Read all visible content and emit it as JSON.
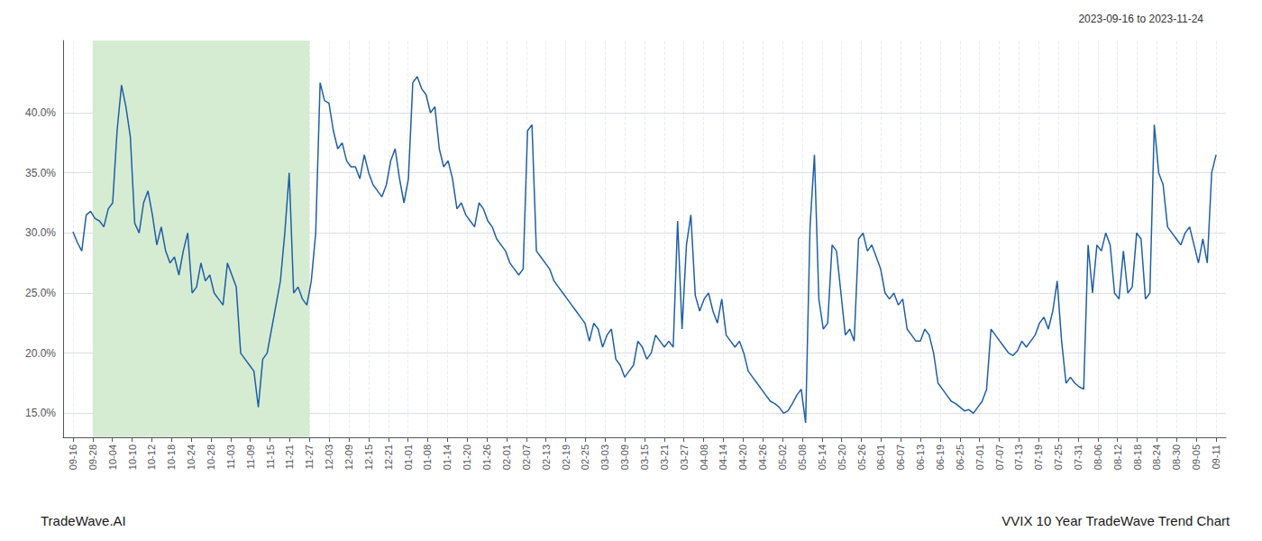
{
  "chart_data": {
    "type": "line",
    "title": "VVIX 10 Year TradeWave Trend Chart",
    "subtitle": "2023-09-16 to 2023-11-24",
    "annotations": [
      "TradeWave.AI"
    ],
    "color": "#1f5fa6",
    "grid": true,
    "highlight": {
      "x": [
        1,
        12
      ],
      "color": "#d6ecd2"
    },
    "xlim": [
      -0.5,
      58.5
    ],
    "xticks": [
      {
        "value": 0,
        "label": "09-16"
      },
      {
        "value": 1,
        "label": "09-28"
      },
      {
        "value": 2,
        "label": "10-04"
      },
      {
        "value": 3,
        "label": "10-10"
      },
      {
        "value": 4,
        "label": "10-12"
      },
      {
        "value": 5,
        "label": "10-18"
      },
      {
        "value": 6,
        "label": "10-24"
      },
      {
        "value": 7,
        "label": "10-28"
      },
      {
        "value": 8,
        "label": "11-03"
      },
      {
        "value": 9,
        "label": "11-09"
      },
      {
        "value": 10,
        "label": "11-15"
      },
      {
        "value": 11,
        "label": "11-21"
      },
      {
        "value": 12,
        "label": "11-27"
      },
      {
        "value": 13,
        "label": "12-03"
      },
      {
        "value": 14,
        "label": "12-09"
      },
      {
        "value": 15,
        "label": "12-15"
      },
      {
        "value": 16,
        "label": "12-21"
      },
      {
        "value": 17,
        "label": "01-01"
      },
      {
        "value": 18,
        "label": "01-08"
      },
      {
        "value": 19,
        "label": "01-14"
      },
      {
        "value": 20,
        "label": "01-20"
      },
      {
        "value": 21,
        "label": "01-26"
      },
      {
        "value": 22,
        "label": "02-01"
      },
      {
        "value": 23,
        "label": "02-07"
      },
      {
        "value": 24,
        "label": "02-13"
      },
      {
        "value": 25,
        "label": "02-19"
      },
      {
        "value": 26,
        "label": "02-25"
      },
      {
        "value": 27,
        "label": "03-03"
      },
      {
        "value": 28,
        "label": "03-09"
      },
      {
        "value": 29,
        "label": "03-15"
      },
      {
        "value": 30,
        "label": "03-21"
      },
      {
        "value": 31,
        "label": "03-27"
      },
      {
        "value": 32,
        "label": "04-08"
      },
      {
        "value": 33,
        "label": "04-14"
      },
      {
        "value": 34,
        "label": "04-20"
      },
      {
        "value": 35,
        "label": "04-26"
      },
      {
        "value": 36,
        "label": "05-02"
      },
      {
        "value": 37,
        "label": "05-08"
      },
      {
        "value": 38,
        "label": "05-14"
      },
      {
        "value": 39,
        "label": "05-20"
      },
      {
        "value": 40,
        "label": "05-26"
      },
      {
        "value": 41,
        "label": "06-01"
      },
      {
        "value": 42,
        "label": "06-07"
      },
      {
        "value": 43,
        "label": "06-13"
      },
      {
        "value": 44,
        "label": "06-19"
      },
      {
        "value": 45,
        "label": "06-25"
      },
      {
        "value": 46,
        "label": "07-01"
      },
      {
        "value": 47,
        "label": "07-07"
      },
      {
        "value": 48,
        "label": "07-13"
      },
      {
        "value": 49,
        "label": "07-19"
      },
      {
        "value": 50,
        "label": "07-25"
      },
      {
        "value": 51,
        "label": "07-31"
      },
      {
        "value": 52,
        "label": "08-06"
      },
      {
        "value": 53,
        "label": "08-12"
      },
      {
        "value": 54,
        "label": "08-18"
      },
      {
        "value": 55,
        "label": "08-24"
      },
      {
        "value": 56,
        "label": "08-30"
      },
      {
        "value": 57,
        "label": "09-05"
      },
      {
        "value": 58,
        "label": "09-11"
      }
    ],
    "ylim": [
      13.0,
      46.0
    ],
    "yticks": [
      {
        "value": 15.0,
        "label": "15.0%"
      },
      {
        "value": 20.0,
        "label": "20.0%"
      },
      {
        "value": 25.0,
        "label": "25.0%"
      },
      {
        "value": 30.0,
        "label": "30.0%"
      },
      {
        "value": 35.0,
        "label": "35.0%"
      },
      {
        "value": 40.0,
        "label": "40.0%"
      }
    ],
    "x": [
      0,
      0.2239,
      0.4479,
      0.6718,
      0.8958,
      1.1197,
      1.3436,
      1.5676,
      1.7915,
      2.0154,
      2.2394,
      2.4633,
      2.6873,
      2.9112,
      3.1351,
      3.3591,
      3.583,
      3.8069,
      4.0309,
      4.2548,
      4.4788,
      4.7027,
      4.9266,
      5.1506,
      5.3745,
      5.5985,
      5.8224,
      6.0463,
      6.2703,
      6.4942,
      6.7181,
      6.9421,
      7.166,
      7.39,
      7.6139,
      7.8378,
      8.0618,
      8.2857,
      8.5097,
      8.7336,
      8.9575,
      9.1815,
      9.4054,
      9.6293,
      9.8533,
      10.0772,
      10.3012,
      10.5251,
      10.749,
      10.973,
      11.1969,
      11.4208,
      11.6448,
      11.8687,
      12.0927,
      12.3166,
      12.5405,
      12.7645,
      12.9884,
      13.2124,
      13.4363,
      13.6602,
      13.8842,
      14.1081,
      14.332,
      14.556,
      14.7799,
      15.0039,
      15.2278,
      15.4517,
      15.6757,
      15.8996,
      16.1236,
      16.3475,
      16.5714,
      16.7954,
      17.0193,
      17.2432,
      17.4672,
      17.6911,
      17.9151,
      18.139,
      18.3629,
      18.5869,
      18.8108,
      19.0347,
      19.2587,
      19.4826,
      19.7066,
      19.9305,
      20.1544,
      20.3784,
      20.6023,
      20.8263,
      21.0502,
      21.2741,
      21.4981,
      21.722,
      21.9459,
      22.1699,
      22.3938,
      22.6178,
      22.8417,
      23.0656,
      23.2896,
      23.5135,
      23.7375,
      23.9614,
      24.1853,
      24.4093,
      24.6332,
      24.8571,
      25.0811,
      25.305,
      25.529,
      25.7529,
      25.9768,
      26.2008,
      26.4247,
      26.6486,
      26.8726,
      27.0965,
      27.3205,
      27.5444,
      27.7683,
      27.9923,
      28.2162,
      28.4402,
      28.6641,
      28.888,
      29.112,
      29.3359,
      29.5598,
      29.7838,
      30.0077,
      30.2317,
      30.4556,
      30.6795,
      30.9035,
      31.1274,
      31.3514,
      31.5753,
      31.7992,
      32.0232,
      32.2471,
      32.471,
      32.695,
      32.9189,
      33.1429,
      33.3668,
      33.5907,
      33.8147,
      34.0386,
      34.2625,
      34.4865,
      34.7104,
      34.9344,
      35.1583,
      35.3822,
      35.6062,
      35.8301,
      36.0541,
      36.278,
      36.5019,
      36.7259,
      36.9498,
      37.1737,
      37.3977,
      37.6216,
      37.8456,
      38.0695,
      38.2934,
      38.5174,
      38.7413,
      38.9653,
      39.1892,
      39.4131,
      39.6371,
      39.861,
      40.0849,
      40.3089,
      40.5328,
      40.7568,
      40.9807,
      41.2046,
      41.4286,
      41.6525,
      41.8764,
      42.1004,
      42.3243,
      42.5483,
      42.7722,
      42.9961,
      43.2201,
      43.444,
      43.668,
      43.8919,
      44.1158,
      44.3398,
      44.5637,
      44.7876,
      45.0116,
      45.2355,
      45.4595,
      45.6834,
      45.9073,
      46.1313,
      46.3552,
      46.5792,
      46.8031,
      47.027,
      47.251,
      47.4749,
      47.6988,
      47.9228,
      48.1467,
      48.3707,
      48.5946,
      48.8185,
      49.0425,
      49.2664,
      49.4903,
      49.7143,
      49.9382,
      50.1622,
      50.3861,
      50.61,
      50.834,
      51.0579,
      51.2819,
      51.5058,
      51.7297,
      51.9537,
      52.1776,
      52.4015,
      52.6255,
      52.8494,
      53.0734,
      53.2973,
      53.5212,
      53.7452,
      53.9691,
      54.1931,
      54.417,
      54.6409,
      54.8649,
      55.0888,
      55.3127,
      55.5367,
      55.7606,
      55.9846,
      56.2085,
      56.4324,
      56.6564,
      56.8803,
      57.1042,
      57.3282,
      57.5521,
      57.7761,
      58
    ],
    "values": [
      30.1,
      29.2,
      28.5,
      31.5,
      31.8,
      31.2,
      31.0,
      30.5,
      32.0,
      32.5,
      38.5,
      42.3,
      40.5,
      38.0,
      30.8,
      30.0,
      32.5,
      33.5,
      31.5,
      29.0,
      30.5,
      28.5,
      27.5,
      28.0,
      26.5,
      28.5,
      30.0,
      25.0,
      25.5,
      27.5,
      26.0,
      26.5,
      25.0,
      24.5,
      24.0,
      27.5,
      26.5,
      25.5,
      20.0,
      19.5,
      19.0,
      18.5,
      15.5,
      19.5,
      20.0,
      22.0,
      24.0,
      26.0,
      30.0,
      35.0,
      25.0,
      25.5,
      24.5,
      24.0,
      26.0,
      30.0,
      42.5,
      41.0,
      40.8,
      38.5,
      37.0,
      37.5,
      36.0,
      35.5,
      35.5,
      34.5,
      36.5,
      35.0,
      34.0,
      33.5,
      33.0,
      34.0,
      36.0,
      37.0,
      34.5,
      32.5,
      34.5,
      42.5,
      43.0,
      42.0,
      41.5,
      40.0,
      40.5,
      37.0,
      35.5,
      36.0,
      34.5,
      32.0,
      32.5,
      31.5,
      31.0,
      30.5,
      32.5,
      32.0,
      31.0,
      30.5,
      29.5,
      29.0,
      28.5,
      27.5,
      27.0,
      26.5,
      27.0,
      38.5,
      39.0,
      28.5,
      28.0,
      27.5,
      27.0,
      26.0,
      25.5,
      25.0,
      24.5,
      24.0,
      23.5,
      23.0,
      22.5,
      21.0,
      22.5,
      22.0,
      20.5,
      21.5,
      22.0,
      19.5,
      19.0,
      18.0,
      18.5,
      19.0,
      21.0,
      20.5,
      19.5,
      20.0,
      21.5,
      21.0,
      20.5,
      21.0,
      20.5,
      31.0,
      22.0,
      29.0,
      31.5,
      24.8,
      23.5,
      24.5,
      25.0,
      23.5,
      22.5,
      24.5,
      21.5,
      21.0,
      20.5,
      21.0,
      20.0,
      18.5,
      18.0,
      17.5,
      17.0,
      16.5,
      16.0,
      15.8,
      15.5,
      15.0,
      15.2,
      15.8,
      16.5,
      17.0,
      14.2,
      30.5,
      36.5,
      24.5,
      22.0,
      22.5,
      29.0,
      28.5,
      25.0,
      21.5,
      22.0,
      21.0,
      29.5,
      30.0,
      28.5,
      29.0,
      28.0,
      27.0,
      25.0,
      24.5,
      25.0,
      24.0,
      24.5,
      22.0,
      21.5,
      21.0,
      21.0,
      22.0,
      21.5,
      20.0,
      17.5,
      17.0,
      16.5,
      16.0,
      15.8,
      15.5,
      15.2,
      15.3,
      15.0,
      15.5,
      16.0,
      17.0,
      22.0,
      21.5,
      21.0,
      20.5,
      20.0,
      19.8,
      20.2,
      21.0,
      20.5,
      21.0,
      21.5,
      22.5,
      23.0,
      22.0,
      23.5,
      26.0,
      21.0,
      17.5,
      18.0,
      17.5,
      17.2,
      17.0,
      29.0,
      25.0,
      29.0,
      28.5,
      30.0,
      29.0,
      25.0,
      24.5,
      28.5,
      25.0,
      25.5,
      30.0,
      29.5,
      24.5,
      25.0,
      39.0,
      35.0,
      34.0,
      30.5,
      30.0,
      29.5,
      29.0,
      30.0,
      30.5,
      29.0,
      27.5,
      29.5,
      27.5,
      35.0,
      36.5
    ]
  }
}
